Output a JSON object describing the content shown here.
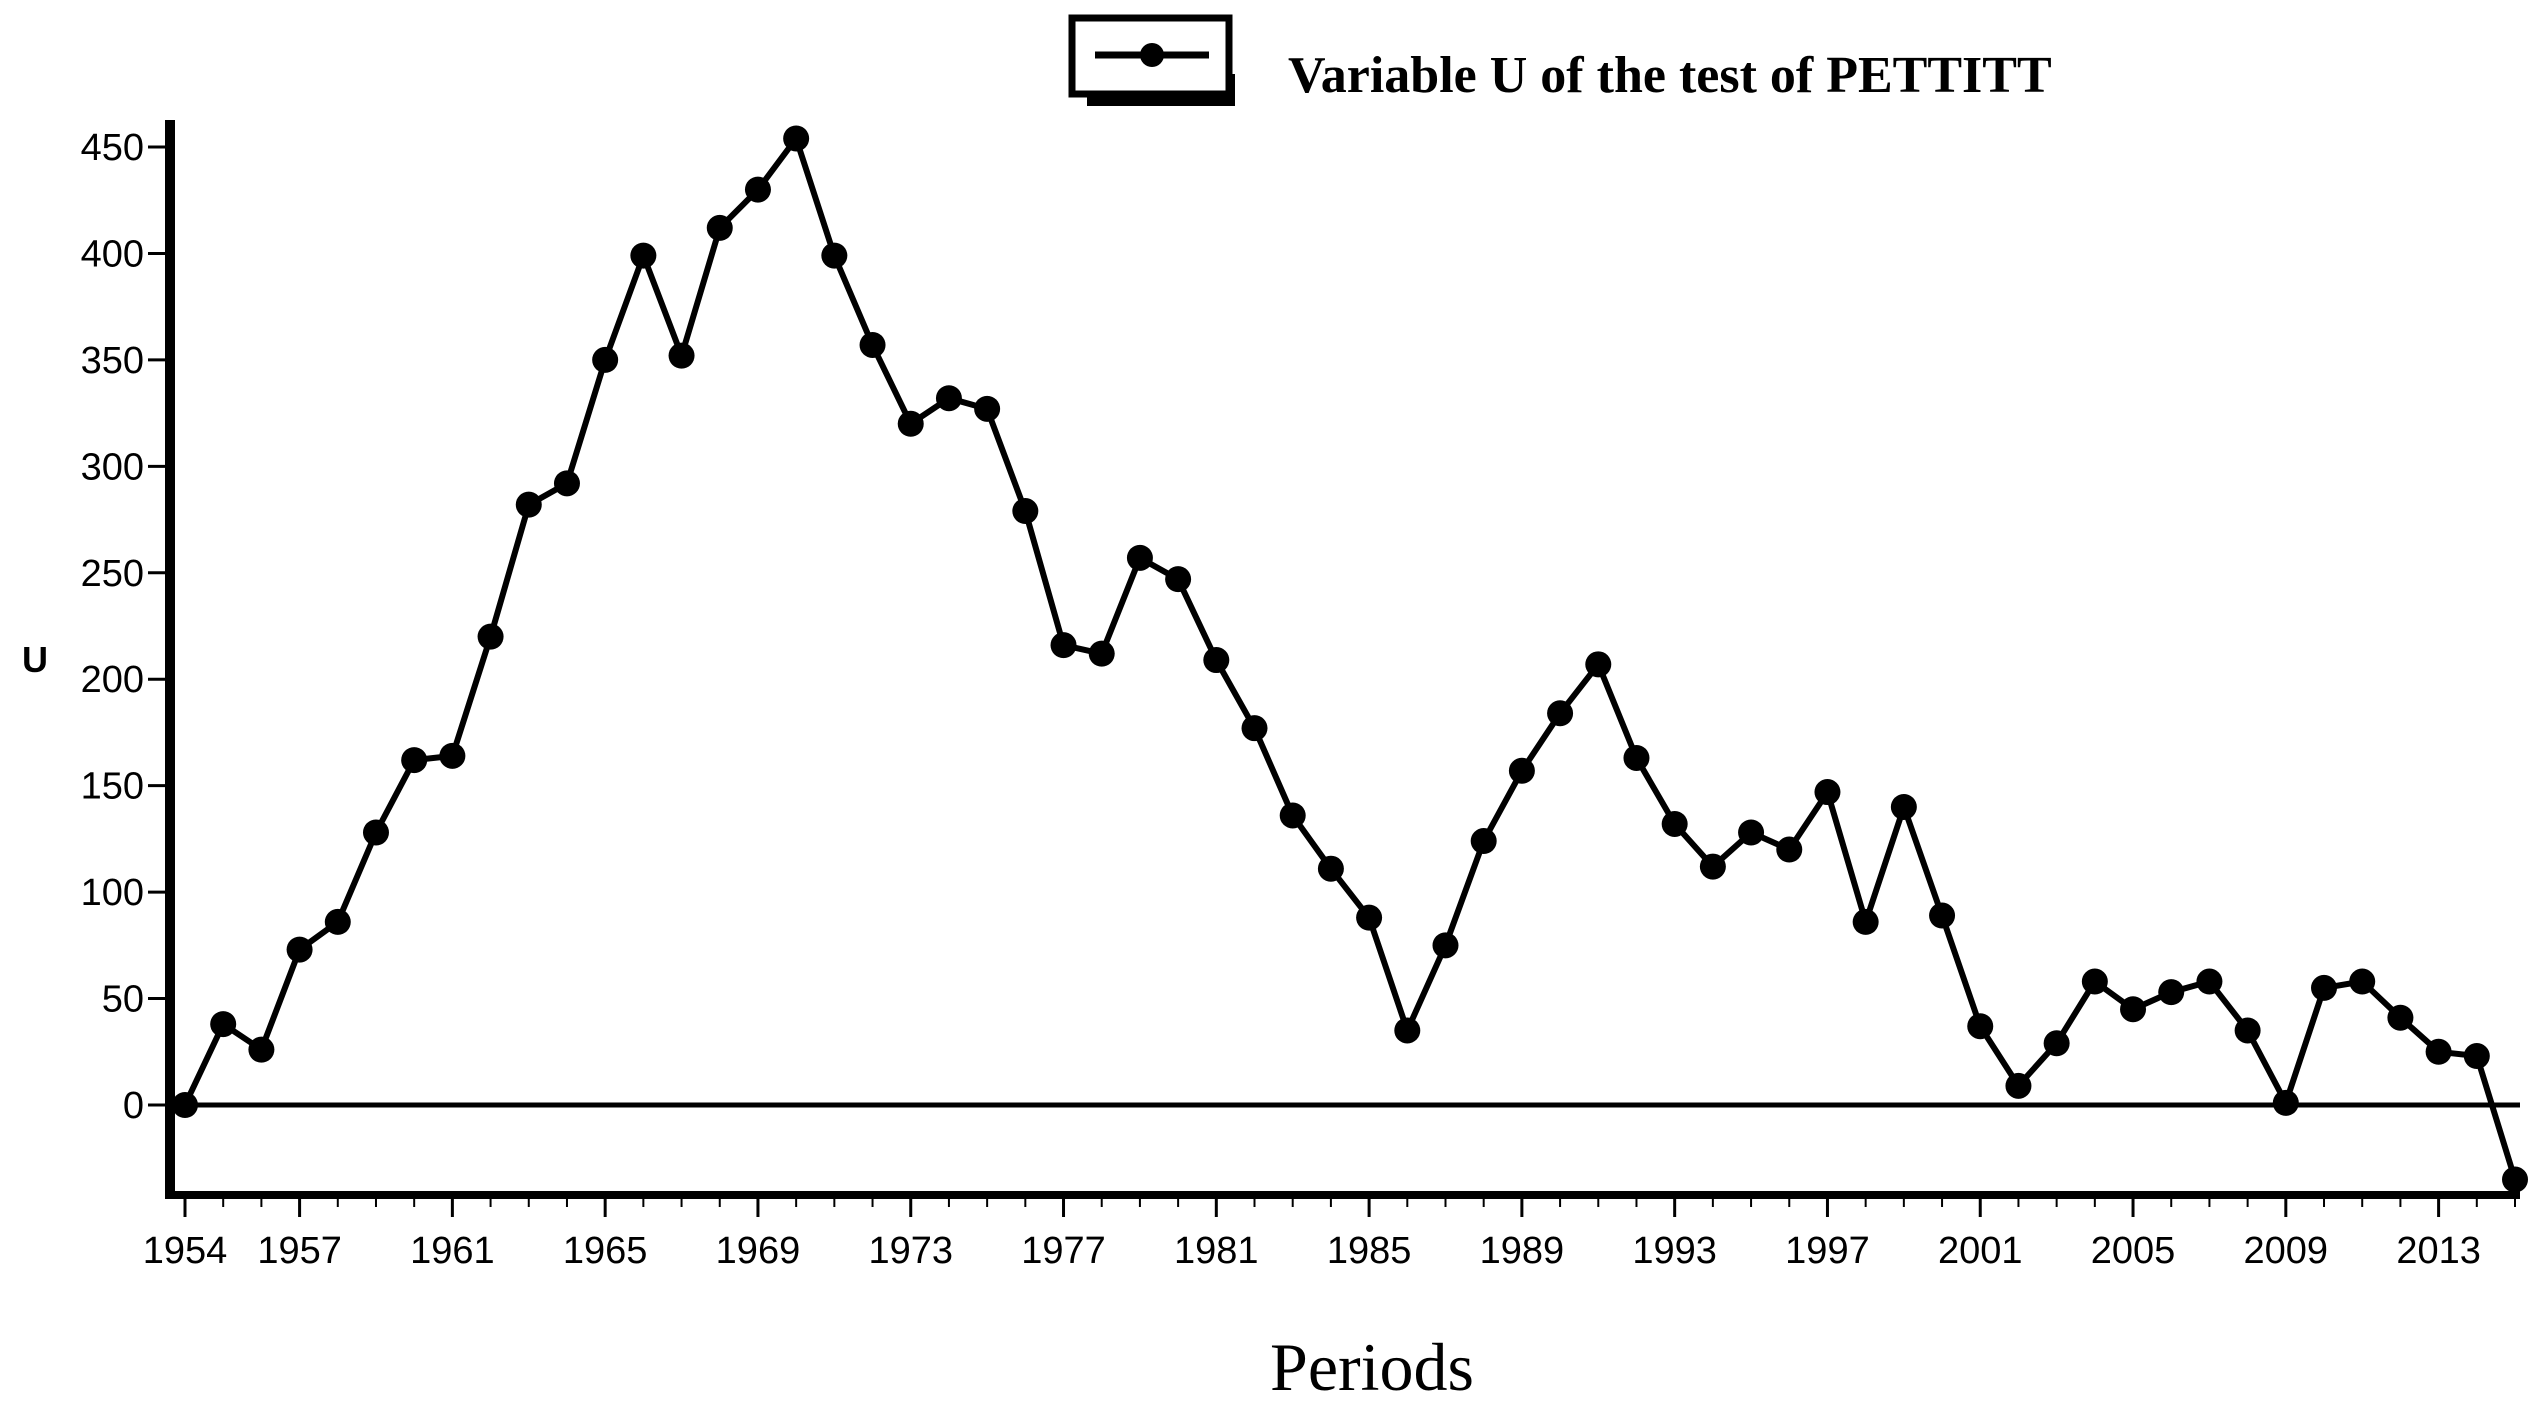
{
  "chart_data": {
    "type": "line",
    "title": "",
    "xlabel": "Periods",
    "ylabel": "U",
    "legend": {
      "position": "top-right",
      "entries": [
        "Variable U of the test of PETTITT"
      ]
    },
    "xlim": [
      1954,
      2015
    ],
    "ylim": [
      -40,
      460
    ],
    "y_ticks": [
      0,
      50,
      100,
      150,
      200,
      250,
      300,
      350,
      400,
      450
    ],
    "x_ticks": [
      1954,
      1957,
      1961,
      1965,
      1969,
      1973,
      1977,
      1981,
      1985,
      1989,
      1993,
      1997,
      2001,
      2005,
      2009,
      2013
    ],
    "zero_line": true,
    "grid": false,
    "colors": {
      "line": "#000000",
      "markers": "#000000"
    },
    "series": [
      {
        "name": "Variable U of the test of PETTITT",
        "x": [
          1954,
          1955,
          1956,
          1957,
          1958,
          1959,
          1960,
          1961,
          1962,
          1963,
          1964,
          1965,
          1966,
          1967,
          1968,
          1969,
          1970,
          1971,
          1972,
          1973,
          1974,
          1975,
          1976,
          1977,
          1978,
          1979,
          1980,
          1981,
          1982,
          1983,
          1984,
          1985,
          1986,
          1987,
          1988,
          1989,
          1990,
          1991,
          1992,
          1993,
          1994,
          1995,
          1996,
          1997,
          1998,
          1999,
          2000,
          2001,
          2002,
          2003,
          2004,
          2005,
          2006,
          2007,
          2008,
          2009,
          2010,
          2011,
          2012,
          2013,
          2014,
          2015
        ],
        "values": [
          0,
          38,
          26,
          73,
          86,
          128,
          162,
          164,
          220,
          282,
          292,
          350,
          399,
          352,
          412,
          430,
          454,
          399,
          357,
          320,
          332,
          327,
          279,
          216,
          212,
          257,
          247,
          209,
          177,
          136,
          111,
          88,
          35,
          75,
          124,
          157,
          184,
          207,
          163,
          132,
          112,
          128,
          120,
          147,
          86,
          140,
          89,
          37,
          9,
          29,
          58,
          45,
          53,
          58,
          35,
          1,
          55,
          58,
          41,
          25,
          23,
          -35
        ]
      }
    ]
  }
}
